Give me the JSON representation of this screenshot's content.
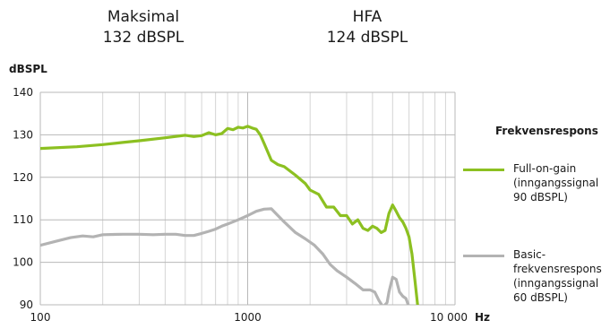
{
  "header": {
    "max_label": "Maksimal",
    "max_value": "132 dBSPL",
    "hfa_label": "HFA",
    "hfa_value": "124 dBSPL"
  },
  "chart_data": {
    "type": "line",
    "ylabel": "dBSPL",
    "xunit": "Hz",
    "xscale": "log",
    "xlim": [
      100,
      10000
    ],
    "ylim": [
      90,
      140
    ],
    "yticks": [
      "90",
      "100",
      "110",
      "120",
      "130",
      "140"
    ],
    "xticks": [
      {
        "value": 100,
        "label": "100"
      },
      {
        "value": 1000,
        "label": "1000"
      },
      {
        "value": 10000,
        "label": "10 000"
      }
    ],
    "grid": true,
    "legend_title": "Frekvensrespons",
    "legend_placement": "right",
    "series": [
      {
        "name": "Full-on-gain (inngangssignal 90 dBSPL)",
        "legend_lines": [
          "Full-on-gain",
          "(inngangssignal",
          "90 dBSPL)"
        ],
        "color": "#8cc021",
        "x": [
          100,
          150,
          200,
          250,
          300,
          400,
          500,
          550,
          600,
          650,
          700,
          750,
          800,
          850,
          900,
          950,
          1000,
          1050,
          1100,
          1150,
          1200,
          1300,
          1400,
          1500,
          1700,
          1900,
          2000,
          2200,
          2400,
          2600,
          2800,
          3000,
          3200,
          3400,
          3600,
          3800,
          4000,
          4200,
          4400,
          4600,
          4800,
          5000,
          5200,
          5400,
          5600,
          5800,
          6000,
          6200,
          6400,
          6600,
          6800
        ],
        "y": [
          126.8,
          127.2,
          127.7,
          128.2,
          128.6,
          129.3,
          129.9,
          129.6,
          129.8,
          130.5,
          130.0,
          130.3,
          131.5,
          131.2,
          131.8,
          131.6,
          132.0,
          131.6,
          131.3,
          130.0,
          128.0,
          124.0,
          123.0,
          122.5,
          120.5,
          118.5,
          117.0,
          116.0,
          113.0,
          113.0,
          111.0,
          111.0,
          109.0,
          110.0,
          108.0,
          107.5,
          108.5,
          108.0,
          107.0,
          107.5,
          111.5,
          113.5,
          112.0,
          110.5,
          109.5,
          108.0,
          106.0,
          102.0,
          96.0,
          90.0,
          88.0
        ],
        "end_x": 6800
      },
      {
        "name": "Basic-frekvensrespons (inngangssignal 60 dBSPL)",
        "legend_lines": [
          "Basic-",
          "frekvensrespons",
          "(inngangssignal",
          "60 dBSPL)"
        ],
        "color": "#b3b3b3",
        "x": [
          100,
          120,
          140,
          160,
          180,
          200,
          250,
          300,
          350,
          400,
          450,
          500,
          550,
          600,
          650,
          700,
          750,
          800,
          900,
          1000,
          1100,
          1200,
          1300,
          1400,
          1500,
          1700,
          1900,
          2100,
          2300,
          2500,
          2700,
          3000,
          3300,
          3600,
          3900,
          4100,
          4300,
          4500,
          4700,
          4800,
          5000,
          5200,
          5400,
          5600,
          5800,
          6000,
          6100
        ],
        "y": [
          104.0,
          105.0,
          105.8,
          106.2,
          106.0,
          106.5,
          106.6,
          106.6,
          106.5,
          106.6,
          106.6,
          106.3,
          106.3,
          106.8,
          107.3,
          107.8,
          108.5,
          109.0,
          110.0,
          111.0,
          112.0,
          112.5,
          112.6,
          111.0,
          109.5,
          107.0,
          105.5,
          104.0,
          102.0,
          99.5,
          98.0,
          96.5,
          95.0,
          93.5,
          93.5,
          93.0,
          91.0,
          89.5,
          90.5,
          93.0,
          96.5,
          96.0,
          93.0,
          92.0,
          91.5,
          89.5,
          89.0
        ],
        "end_x": 6100
      }
    ]
  }
}
